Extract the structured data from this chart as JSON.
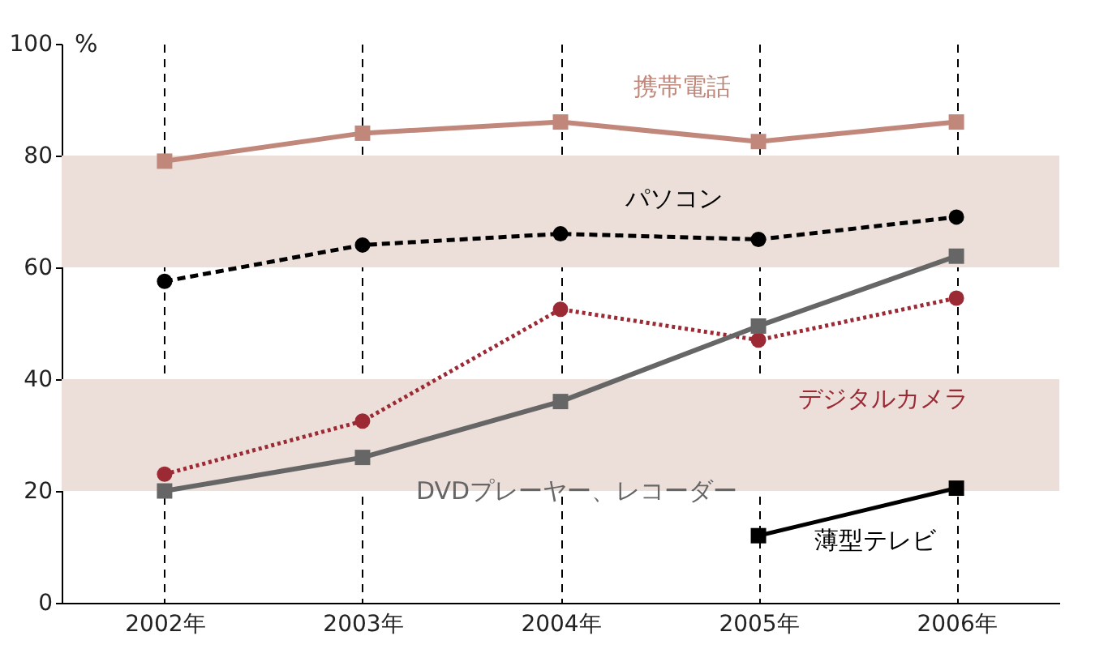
{
  "chart_data": {
    "type": "line",
    "ylabel": "%",
    "categories": [
      "2002年",
      "2003年",
      "2004年",
      "2005年",
      "2006年"
    ],
    "series": [
      {
        "name": "携帯電話",
        "color": "#c0877a",
        "marker": "square",
        "line_style": "solid",
        "values": [
          79,
          84,
          86,
          82.5,
          86
        ]
      },
      {
        "name": "パソコン",
        "color": "#000000",
        "marker": "circle",
        "line_style": "dashed",
        "values": [
          57.5,
          64,
          66,
          65,
          69
        ]
      },
      {
        "name": "デジタルカメラ",
        "color": "#9b2a35",
        "marker": "circle",
        "line_style": "dotted",
        "values": [
          23,
          32.5,
          52.5,
          47,
          54.5
        ]
      },
      {
        "name": "DVDプレーヤー、レコーダー",
        "color": "#666666",
        "marker": "square",
        "line_style": "solid",
        "values": [
          20,
          26,
          36,
          49.5,
          62
        ]
      },
      {
        "name": "薄型テレビ",
        "color": "#000000",
        "marker": "square",
        "line_style": "solid",
        "values": [
          null,
          null,
          null,
          12,
          20.5
        ]
      }
    ],
    "bands": [
      {
        "axis": "y",
        "from": 20,
        "to": 40,
        "color": "#ecdfd9"
      },
      {
        "axis": "y",
        "from": 60,
        "to": 80,
        "color": "#ecdfd9"
      }
    ],
    "ylim": [
      0,
      100
    ],
    "yticks": [
      0,
      20,
      40,
      60,
      80,
      100
    ],
    "grid": "x"
  }
}
